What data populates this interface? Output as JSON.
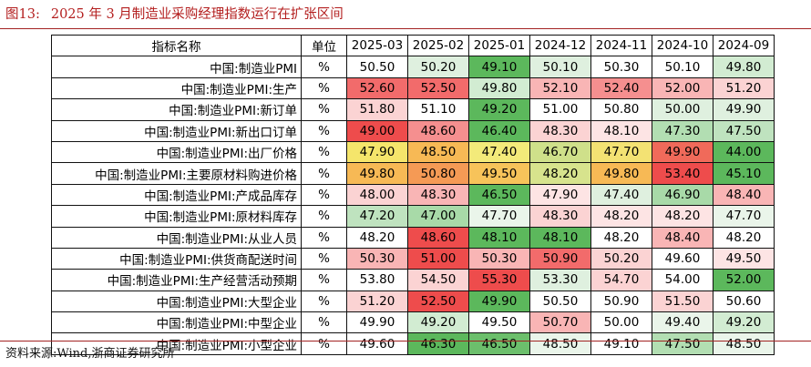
{
  "figure": {
    "number": "图13:",
    "title": "2025 年 3 月制造业采购经理指数运行在扩张区间",
    "source": "资料来源:Wind,浙商证券研究所"
  },
  "table": {
    "header_name": "指标名称",
    "header_unit": "单位",
    "columns": [
      "2025-03",
      "2025-02",
      "2025-01",
      "2024-12",
      "2024-11",
      "2024-10",
      "2024-09"
    ],
    "rows": [
      {
        "name": "中国:制造业PMI",
        "unit": "%",
        "values": [
          "50.50",
          "50.20",
          "49.10",
          "50.10",
          "50.30",
          "50.10",
          "49.80"
        ],
        "colors": [
          "#ffffff",
          "#dff0df",
          "#5cb85c",
          "#dff0df",
          "#ffffff",
          "#ffffff",
          "#d2ecd2"
        ]
      },
      {
        "name": "中国:制造业PMI:生产",
        "unit": "%",
        "values": [
          "52.60",
          "52.50",
          "49.80",
          "52.10",
          "52.40",
          "52.00",
          "51.20"
        ],
        "colors": [
          "#f26b6b",
          "#f26b6b",
          "#d2ecd2",
          "#f9b5b5",
          "#f58f8f",
          "#f9b5b5",
          "#fbd3d3"
        ]
      },
      {
        "name": "中国:制造业PMI:新订单",
        "unit": "%",
        "values": [
          "51.80",
          "51.10",
          "49.20",
          "51.00",
          "50.80",
          "50.00",
          "49.90"
        ],
        "colors": [
          "#fbd3d3",
          "#ffffff",
          "#5cb85c",
          "#ffffff",
          "#ffffff",
          "#dff0df",
          "#dff0df"
        ]
      },
      {
        "name": "中国:制造业PMI:新出口订单",
        "unit": "%",
        "values": [
          "49.00",
          "48.60",
          "46.40",
          "48.30",
          "48.10",
          "47.30",
          "47.50"
        ],
        "colors": [
          "#ee4c4c",
          "#f58f8f",
          "#5cb85c",
          "#fbd3d3",
          "#fde4e4",
          "#b2deb2",
          "#bfe3bf"
        ]
      },
      {
        "name": "中国:制造业PMI:出厂价格",
        "unit": "%",
        "values": [
          "47.90",
          "48.50",
          "47.40",
          "46.70",
          "47.70",
          "49.90",
          "44.00"
        ],
        "colors": [
          "#f5e56b",
          "#f7b955",
          "#f3ea7a",
          "#cfe08a",
          "#f3e273",
          "#f06a5a",
          "#5cb85c"
        ]
      },
      {
        "name": "中国:制造业PMI:主要原材料购进价格",
        "unit": "%",
        "values": [
          "49.80",
          "50.80",
          "49.50",
          "48.20",
          "49.80",
          "53.40",
          "45.10"
        ],
        "colors": [
          "#f7b955",
          "#f59a55",
          "#f7c35a",
          "#d7e38d",
          "#f7b955",
          "#ee4c4c",
          "#5cb85c"
        ]
      },
      {
        "name": "中国:制造业PMI:产成品库存",
        "unit": "%",
        "values": [
          "48.00",
          "48.30",
          "46.50",
          "47.90",
          "47.40",
          "46.90",
          "48.40"
        ],
        "colors": [
          "#fbd3d3",
          "#f9b5b5",
          "#5cb85c",
          "#fde4e4",
          "#dff0df",
          "#a8daa8",
          "#f9b5b5"
        ]
      },
      {
        "name": "中国:制造业PMI:原材料库存",
        "unit": "%",
        "values": [
          "47.20",
          "47.00",
          "47.70",
          "48.30",
          "48.20",
          "48.20",
          "47.70"
        ],
        "colors": [
          "#bfe3bf",
          "#a8daa8",
          "#eaf5ea",
          "#fbd3d3",
          "#fde4e4",
          "#fde4e4",
          "#eaf5ea"
        ]
      },
      {
        "name": "中国:制造业PMI:从业人员",
        "unit": "%",
        "values": [
          "48.20",
          "48.60",
          "48.10",
          "48.10",
          "48.20",
          "48.40",
          "48.20"
        ],
        "colors": [
          "#ffffff",
          "#ee4c4c",
          "#5cb85c",
          "#5cb85c",
          "#ffffff",
          "#f9b5b5",
          "#ffffff"
        ]
      },
      {
        "name": "中国:制造业PMI:供货商配送时间",
        "unit": "%",
        "values": [
          "50.30",
          "51.00",
          "50.30",
          "50.90",
          "50.20",
          "49.60",
          "49.50"
        ],
        "colors": [
          "#f9b5b5",
          "#ee4c4c",
          "#f9b5b5",
          "#f26b6b",
          "#fbd3d3",
          "#ffffff",
          "#fde4e4"
        ]
      },
      {
        "name": "中国:制造业PMI:生产经营活动预期",
        "unit": "%",
        "values": [
          "53.80",
          "54.50",
          "55.30",
          "53.30",
          "54.70",
          "54.00",
          "52.00"
        ],
        "colors": [
          "#ffffff",
          "#fbd3d3",
          "#ee4c4c",
          "#dff0df",
          "#fbd3d3",
          "#ffffff",
          "#5cb85c"
        ]
      },
      {
        "name": "中国:制造业PMI:大型企业",
        "unit": "%",
        "values": [
          "51.20",
          "52.50",
          "49.90",
          "50.50",
          "50.90",
          "51.50",
          "50.60"
        ],
        "colors": [
          "#fbd3d3",
          "#ee4c4c",
          "#5cb85c",
          "#ffffff",
          "#ffffff",
          "#fbd3d3",
          "#ffffff"
        ]
      },
      {
        "name": "中国:制造业PMI:中型企业",
        "unit": "%",
        "values": [
          "49.90",
          "49.20",
          "49.50",
          "50.70",
          "50.00",
          "49.40",
          "49.20"
        ],
        "colors": [
          "#ffffff",
          "#d2ecd2",
          "#ffffff",
          "#f9b5b5",
          "#ffffff",
          "#eaf5ea",
          "#d2ecd2"
        ]
      },
      {
        "name": "中国:制造业PMI:小型企业",
        "unit": "%",
        "values": [
          "49.60",
          "46.30",
          "46.50",
          "48.50",
          "49.10",
          "47.50",
          "48.50"
        ],
        "colors": [
          "#ffffff",
          "#5cb85c",
          "#6cbf6c",
          "#eaf5ea",
          "#ffffff",
          "#b2deb2",
          "#eaf5ea"
        ]
      }
    ]
  }
}
